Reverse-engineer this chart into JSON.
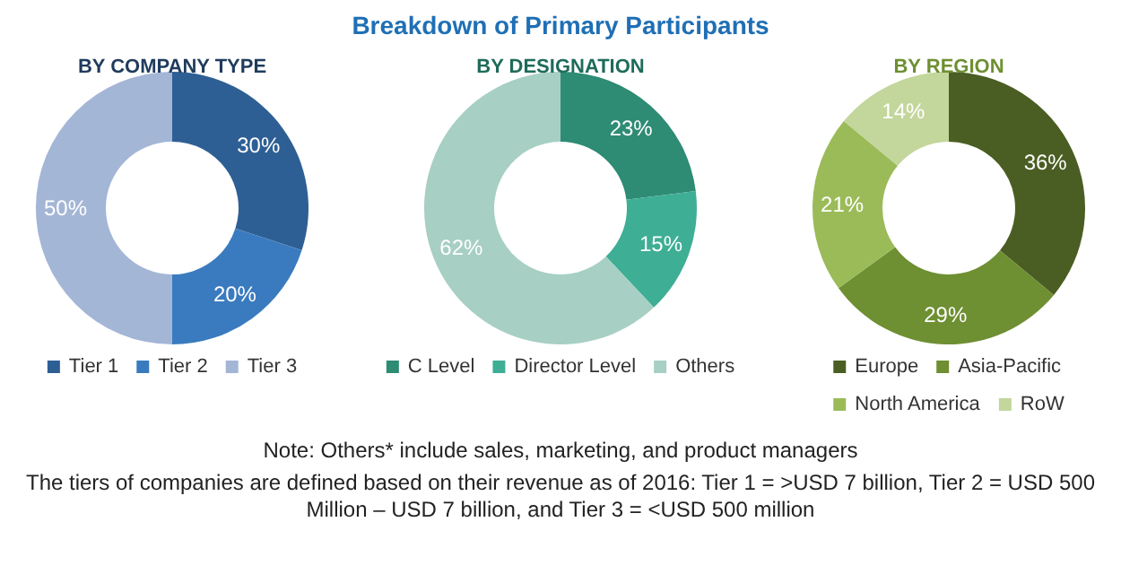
{
  "chart_data": [
    {
      "type": "donut",
      "subtitle": "BY COMPANY TYPE",
      "categories": [
        "Tier 1",
        "Tier 2",
        "Tier 3"
      ],
      "values": [
        30,
        20,
        50
      ],
      "colors": [
        "#2e5f94",
        "#3a7bbf",
        "#a4b6d6"
      ],
      "value_labels": [
        "30%",
        "20%",
        "50%"
      ],
      "legend": "bottom",
      "annotations": [
        "The tiers of companies are defined based on their revenue as of 2016: Tier 1 = >USD 7 billion, Tier 2 = USD 500 Million – USD 7 billion, and Tier 3 = <USD 500 million"
      ]
    },
    {
      "type": "donut",
      "title": "Breakdown of Primary Participants",
      "subtitle": "BY DESIGNATION",
      "categories": [
        "C Level",
        "Director Level",
        "Others"
      ],
      "values": [
        23,
        15,
        62
      ],
      "colors": [
        "#2e8b74",
        "#3eae95",
        "#a7cfc4"
      ],
      "value_labels": [
        "23%",
        "15%",
        "62%"
      ],
      "legend": "bottom",
      "annotations": [
        "Note: Others* include sales, marketing, and product managers"
      ]
    },
    {
      "type": "donut",
      "subtitle": "BY REGION",
      "categories": [
        "Europe",
        "Asia-Pacific",
        "North America",
        "RoW"
      ],
      "values": [
        36,
        29,
        21,
        14
      ],
      "colors": [
        "#4a5e23",
        "#6e8f32",
        "#9bbb59",
        "#c3d69b"
      ],
      "value_labels": [
        "36%",
        "29%",
        "21%",
        "14%"
      ],
      "legend": "bottom"
    }
  ]
}
